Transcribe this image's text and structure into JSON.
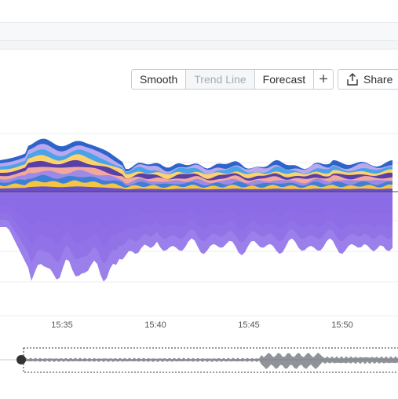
{
  "toolbar": {
    "smooth_label": "Smooth",
    "trend_line_label": "Trend Line",
    "forecast_label": "Forecast",
    "add_icon": "plus-icon",
    "share_label": "Share",
    "share_icon": "share-icon"
  },
  "chart_data": {
    "type": "area",
    "x_ticks": [
      "15:35",
      "15:40",
      "15:45",
      "15:50"
    ],
    "colors": {
      "upper_bands": [
        "#6a4fc4",
        "#f5c542",
        "#3d7fd6",
        "#9b8ae6",
        "#f0a8a0",
        "#5b3fa8",
        "#ffd36a",
        "#4aa3e8",
        "#b9a8f0",
        "#2e64c9"
      ],
      "lower_fill": "#9c7cf0",
      "baseline": "#4a4a4a"
    }
  },
  "timeline": {
    "handle_icon": "drag-handle-icon"
  }
}
